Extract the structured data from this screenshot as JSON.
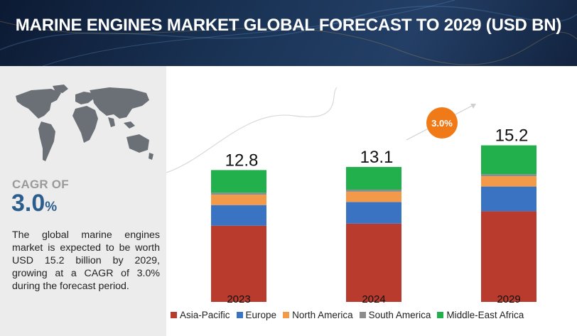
{
  "header": {
    "title": "MARINE ENGINES MARKET GLOBAL FORECAST TO 2029 (USD BN)"
  },
  "side": {
    "cagr_label": "CAGR OF",
    "cagr_value": "3.0",
    "cagr_unit": "%",
    "description": "The global marine engines market is expected to be worth USD 15.2 billion by 2029, growing at a CAGR of 3.0% during the forecast period."
  },
  "badge": {
    "text": "3.0%",
    "color": "#f07a18"
  },
  "chart_data": {
    "type": "bar",
    "stacked": true,
    "categories": [
      "2023",
      "2024",
      "2029"
    ],
    "totals": [
      "12.8",
      "13.1",
      "15.2"
    ],
    "series": [
      {
        "name": "Asia-Pacific",
        "color": "#b83b2e",
        "values": [
          7.4,
          7.6,
          8.8
        ]
      },
      {
        "name": "Europe",
        "color": "#3a73c2",
        "values": [
          2.0,
          2.1,
          2.4
        ]
      },
      {
        "name": "North America",
        "color": "#f39a4a",
        "values": [
          1.0,
          1.0,
          1.0
        ]
      },
      {
        "name": "South America",
        "color": "#8c8c8c",
        "values": [
          0.2,
          0.2,
          0.2
        ]
      },
      {
        "name": "Middle-East Africa",
        "color": "#21b04b",
        "values": [
          2.2,
          2.2,
          2.8
        ]
      }
    ],
    "ylim": [
      0,
      15.2
    ],
    "grid": false,
    "legend": "bottom",
    "xlabel": "",
    "ylabel": ""
  }
}
